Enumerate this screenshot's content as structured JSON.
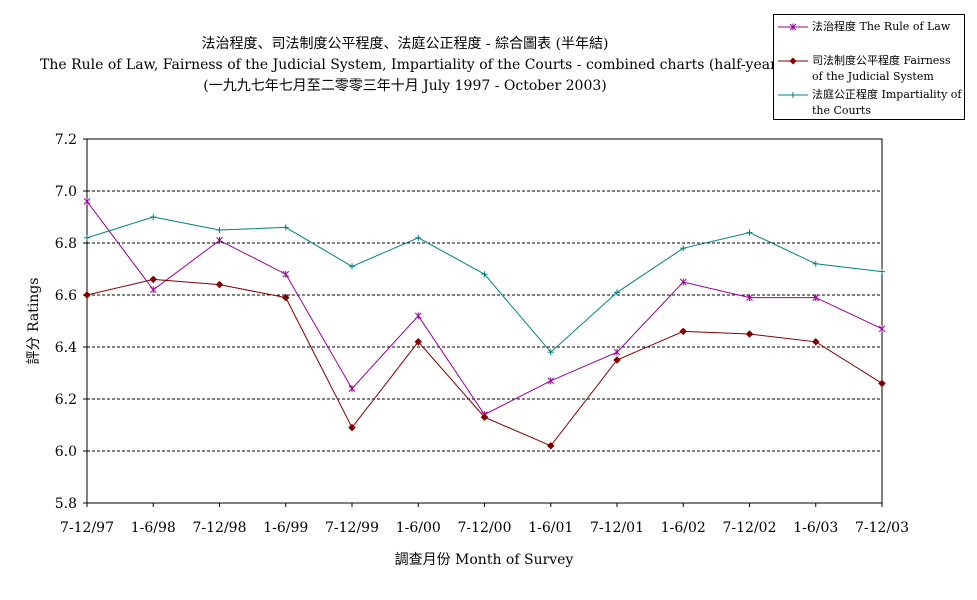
{
  "chart_data": {
    "type": "line",
    "title": "法治程度、司法制度公平程度、法庭公正程度 - 綜合圖表 (半年結)",
    "subtitle": "The Rule of Law, Fairness of the Judicial System, Impartiality of the Courts - combined charts (half-yearly average)",
    "subtitle2": "(一九九七年七月至二零零三年十月 July 1997 - October 2003)",
    "xlabel": "調查月份 Month of Survey",
    "ylabel": "評分 Ratings",
    "categories": [
      "7-12/97",
      "1-6/98",
      "7-12/98",
      "1-6/99",
      "7-12/99",
      "1-6/00",
      "7-12/00",
      "1-6/01",
      "7-12/01",
      "1-6/02",
      "7-12/02",
      "1-6/03",
      "7-12/03"
    ],
    "ylim": [
      5.8,
      7.2
    ],
    "yticks": [
      "5.8",
      "6.0",
      "6.2",
      "6.4",
      "6.6",
      "6.8",
      "7.0",
      "7.2"
    ],
    "grid": true,
    "legend_position": "top-right",
    "series": [
      {
        "name": "法治程度 The Rule of Law",
        "color": "#990099",
        "marker": "asterisk",
        "values": [
          6.96,
          6.62,
          6.81,
          6.68,
          6.24,
          6.52,
          6.14,
          6.27,
          6.38,
          6.65,
          6.59,
          6.59,
          6.47
        ]
      },
      {
        "name": "司法制度公平程度 Fairness of the Judicial System",
        "color": "#800000",
        "marker": "diamond",
        "values": [
          6.6,
          6.66,
          6.64,
          6.59,
          6.09,
          6.42,
          6.13,
          6.02,
          6.35,
          6.46,
          6.45,
          6.42,
          6.26
        ]
      },
      {
        "name": "法庭公正程度 Impartiality of the Courts",
        "color": "#008080",
        "marker": "plus",
        "values": [
          6.82,
          6.9,
          6.85,
          6.86,
          6.71,
          6.82,
          6.68,
          6.38,
          6.61,
          6.78,
          6.84,
          6.72,
          6.69
        ]
      }
    ]
  }
}
